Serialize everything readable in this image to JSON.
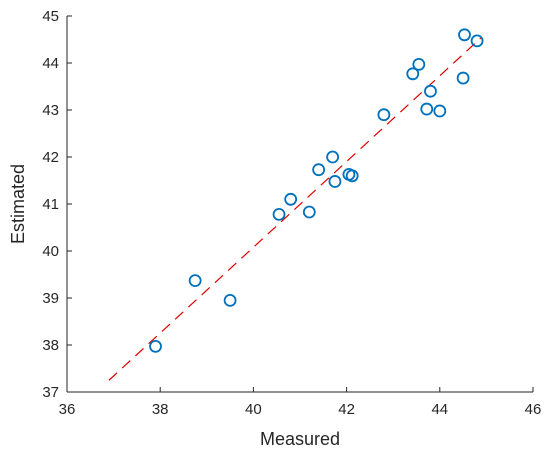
{
  "chart_data": {
    "type": "scatter",
    "title": "",
    "xlabel": "Measured",
    "ylabel": "Estimated",
    "xlim": [
      36,
      46
    ],
    "ylim": [
      37,
      45
    ],
    "xticks": [
      36,
      38,
      40,
      42,
      44,
      46
    ],
    "yticks": [
      37,
      38,
      39,
      40,
      41,
      42,
      43,
      44,
      45
    ],
    "grid": false,
    "legend": "none",
    "series": [
      {
        "marker": "open-circle",
        "color": "#0072BD",
        "points": [
          {
            "x": 37.9,
            "y": 37.97
          },
          {
            "x": 38.75,
            "y": 39.37
          },
          {
            "x": 39.5,
            "y": 38.95
          },
          {
            "x": 40.55,
            "y": 40.78
          },
          {
            "x": 40.8,
            "y": 41.1
          },
          {
            "x": 41.2,
            "y": 40.83
          },
          {
            "x": 41.4,
            "y": 41.73
          },
          {
            "x": 41.7,
            "y": 42.0
          },
          {
            "x": 41.75,
            "y": 41.48
          },
          {
            "x": 42.05,
            "y": 41.63
          },
          {
            "x": 42.12,
            "y": 41.6
          },
          {
            "x": 42.8,
            "y": 42.9
          },
          {
            "x": 43.42,
            "y": 43.77
          },
          {
            "x": 43.55,
            "y": 43.97
          },
          {
            "x": 43.72,
            "y": 43.02
          },
          {
            "x": 43.8,
            "y": 43.4
          },
          {
            "x": 44.0,
            "y": 42.98
          },
          {
            "x": 44.5,
            "y": 43.68
          },
          {
            "x": 44.53,
            "y": 44.6
          },
          {
            "x": 44.8,
            "y": 44.47
          }
        ]
      }
    ],
    "reference_line": {
      "style": "dashed",
      "color": "#e00000",
      "x": [
        36.9,
        44.9
      ],
      "y": [
        37.25,
        44.55
      ]
    }
  }
}
